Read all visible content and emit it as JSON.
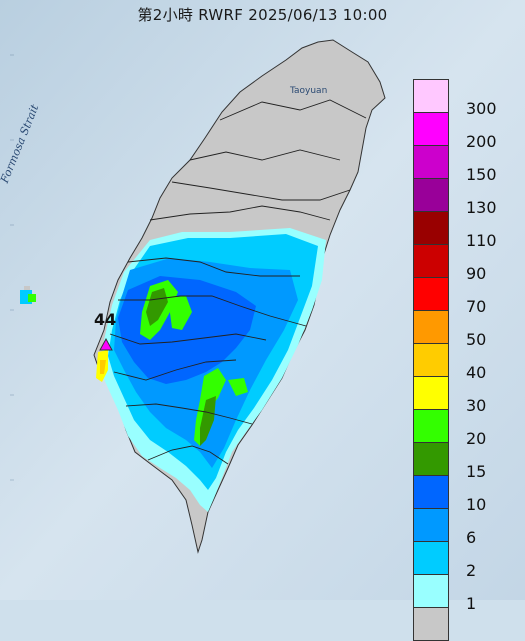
{
  "title": "第2小時  RWRF 2025/06/13 10:00",
  "map_labels": {
    "strait": "Formosa Strait",
    "city": "Taoyuan",
    "max_value": "44"
  },
  "legend": {
    "items": [
      {
        "label": "300",
        "color": "#ffc8ff"
      },
      {
        "label": "200",
        "color": "#ff00ff"
      },
      {
        "label": "150",
        "color": "#cc00cc"
      },
      {
        "label": "130",
        "color": "#990099"
      },
      {
        "label": "110",
        "color": "#990000"
      },
      {
        "label": "90",
        "color": "#cc0000"
      },
      {
        "label": "70",
        "color": "#ff0000"
      },
      {
        "label": "50",
        "color": "#ff9900"
      },
      {
        "label": "40",
        "color": "#ffcc00"
      },
      {
        "label": "30",
        "color": "#ffff00"
      },
      {
        "label": "20",
        "color": "#33ff00"
      },
      {
        "label": "15",
        "color": "#339900"
      },
      {
        "label": "10",
        "color": "#0066ff"
      },
      {
        "label": "6",
        "color": "#0099ff"
      },
      {
        "label": "2",
        "color": "#00ccff"
      },
      {
        "label": "1",
        "color": "#99ffff"
      },
      {
        "label": "",
        "color": "#c8c8c8"
      }
    ]
  },
  "colors": {
    "sea": "#cfe0ec",
    "land_gray": "#c8c8c8",
    "boundary": "#222222"
  }
}
